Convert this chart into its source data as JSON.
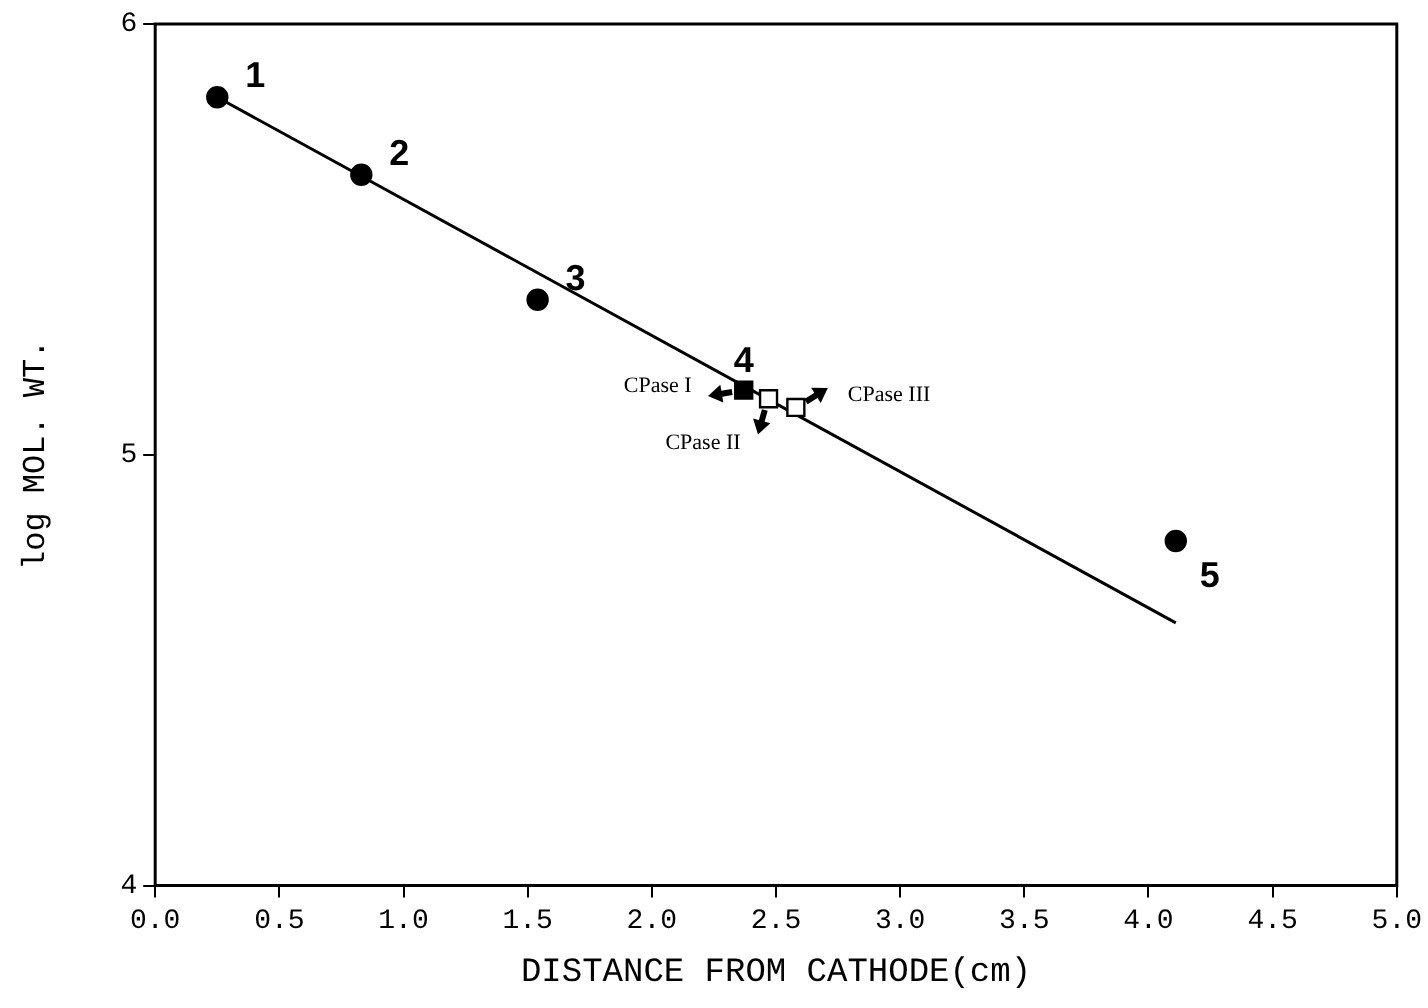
{
  "chart_data": {
    "type": "scatter",
    "xlabel": "DISTANCE FROM CATHODE(cm)",
    "ylabel": "log MOL. WT.",
    "xlim": [
      0,
      5
    ],
    "xticks": [
      {
        "value": 0,
        "label": "0.0"
      },
      {
        "value": 0.5,
        "label": "0.5"
      },
      {
        "value": 1,
        "label": "1.0"
      },
      {
        "value": 1.5,
        "label": "1.5"
      },
      {
        "value": 2,
        "label": "2.0"
      },
      {
        "value": 2.5,
        "label": "2.5"
      },
      {
        "value": 3,
        "label": "3.0"
      },
      {
        "value": 3.5,
        "label": "3.5"
      },
      {
        "value": 4,
        "label": "4.0"
      },
      {
        "value": 4.5,
        "label": "4.5"
      },
      {
        "value": 5,
        "label": "5.0"
      }
    ],
    "ylim": [
      4,
      6
    ],
    "yticks": [
      4,
      5,
      6
    ],
    "grid": false,
    "legend": false,
    "series": [
      {
        "type": "scatter",
        "marker": "circle",
        "color": "#000000",
        "x": [
          0.25,
          0.83,
          1.54,
          4.11
        ],
        "values": [
          5.83,
          5.65,
          5.36,
          4.8
        ]
      },
      {
        "type": "scatter",
        "marker": "square",
        "color": "#000000",
        "x": [
          2.37
        ],
        "values": [
          5.15
        ]
      },
      {
        "type": "scatter",
        "marker": "square",
        "color": "#ffffff",
        "x": [
          2.47,
          2.58
        ],
        "values": [
          5.13,
          5.11
        ]
      },
      {
        "type": "line",
        "marker": "none",
        "color": "#000000",
        "x": [
          0.25,
          4.11
        ],
        "values": [
          5.83,
          4.61
        ]
      }
    ],
    "annotations": [
      {
        "text": "1",
        "x": 0.25,
        "y": 5.83
      },
      {
        "text": "2",
        "x": 0.83,
        "y": 5.65
      },
      {
        "text": "3",
        "x": 1.54,
        "y": 5.36
      },
      {
        "text": "4",
        "x": 2.37,
        "y": 5.15
      },
      {
        "text": "5",
        "x": 4.11,
        "y": 4.8
      },
      {
        "text": "CPase I",
        "x": 2.37,
        "y": 5.15
      },
      {
        "text": "CPase II",
        "x": 2.47,
        "y": 5.13
      },
      {
        "text": "CPase III",
        "x": 2.58,
        "y": 5.11
      }
    ]
  }
}
